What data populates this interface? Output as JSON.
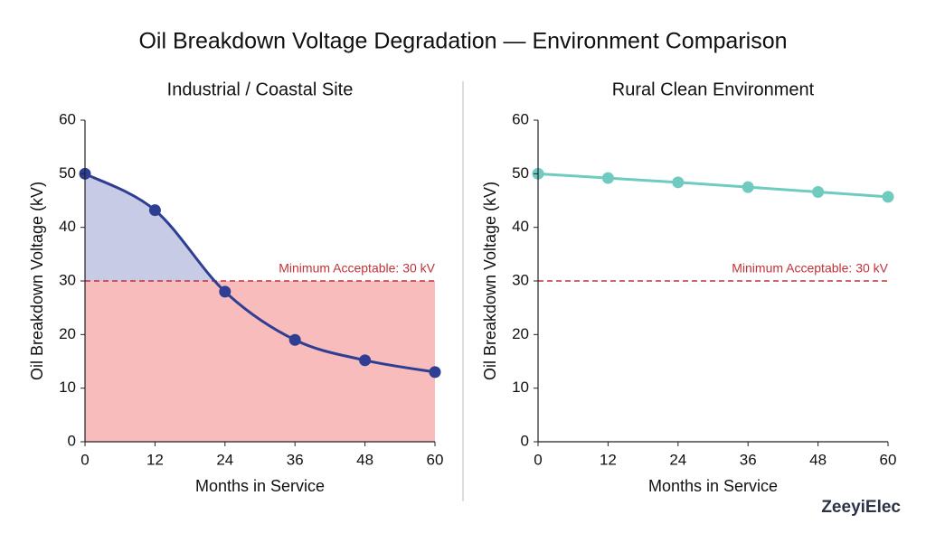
{
  "title": "Oil Breakdown Voltage Degradation — Environment Comparison",
  "watermark": "ZeeyiElec",
  "chart_data": [
    {
      "type": "line",
      "subtitle": "Industrial / Coastal Site",
      "x": [
        0,
        12,
        24,
        36,
        48,
        60
      ],
      "values": [
        50,
        43.2,
        28,
        19,
        15.2,
        13
      ],
      "color": "#2e3f93",
      "smooth": true,
      "xlabel": "Months in Service",
      "ylabel": "Oil Breakdown Voltage (kV)",
      "xlim": [
        0,
        60
      ],
      "xticks": [
        0,
        12,
        24,
        36,
        48,
        60
      ],
      "ylim": [
        0,
        60
      ],
      "yticks": [
        0,
        10,
        20,
        30,
        40,
        50,
        60
      ],
      "threshold": {
        "value": 30,
        "label": "Minimum Acceptable: 30 kV",
        "color": "#c0333a"
      },
      "fill_above_threshold_color": "#c7cbe6",
      "fill_below_threshold_color": "#f8bcbc"
    },
    {
      "type": "line",
      "subtitle": "Rural Clean Environment",
      "x": [
        0,
        12,
        24,
        36,
        48,
        60
      ],
      "values": [
        50,
        49.2,
        48.4,
        47.5,
        46.6,
        45.7
      ],
      "color": "#6fcbbf",
      "smooth": false,
      "xlabel": "Months in Service",
      "ylabel": "Oil Breakdown Voltage (kV)",
      "xlim": [
        0,
        60
      ],
      "xticks": [
        0,
        12,
        24,
        36,
        48,
        60
      ],
      "ylim": [
        0,
        60
      ],
      "yticks": [
        0,
        10,
        20,
        30,
        40,
        50,
        60
      ],
      "threshold": {
        "value": 30,
        "label": "Minimum Acceptable: 30 kV",
        "color": "#c0333a"
      }
    }
  ]
}
